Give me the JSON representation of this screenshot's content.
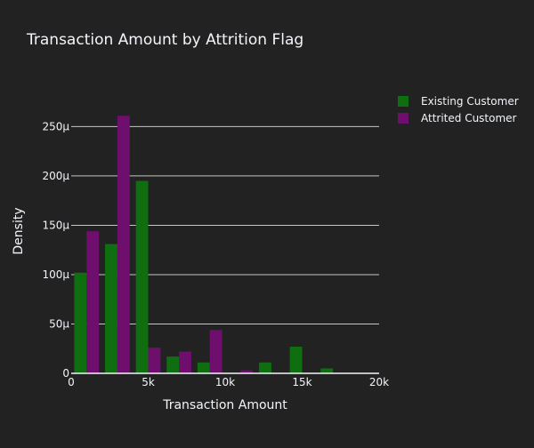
{
  "chart_data": {
    "type": "bar",
    "title": "Transaction Amount by Attrition Flag",
    "xlabel": "Transaction Amount",
    "ylabel": "Density",
    "xlim": [
      0,
      20000
    ],
    "ylim": [
      0,
      0.00029
    ],
    "bin_width": 2000,
    "x_ticks": [
      {
        "value": 0,
        "label": "0"
      },
      {
        "value": 5000,
        "label": "5k"
      },
      {
        "value": 10000,
        "label": "10k"
      },
      {
        "value": 15000,
        "label": "15k"
      },
      {
        "value": 20000,
        "label": "20k"
      }
    ],
    "y_ticks": [
      {
        "value": 0,
        "label": "0"
      },
      {
        "value": 5e-05,
        "label": "50μ"
      },
      {
        "value": 0.0001,
        "label": "100μ"
      },
      {
        "value": 0.00015,
        "label": "150μ"
      },
      {
        "value": 0.0002,
        "label": "200μ"
      },
      {
        "value": 0.00025,
        "label": "250μ"
      }
    ],
    "grid": true,
    "legend_position": "top-right",
    "series": [
      {
        "name": "Existing Customer",
        "color": "#0f6e0f",
        "bins": [
          {
            "x0": 0,
            "value": 0.000102
          },
          {
            "x0": 2000,
            "value": 0.000131
          },
          {
            "x0": 4000,
            "value": 0.000195
          },
          {
            "x0": 6000,
            "value": 1.7e-05
          },
          {
            "x0": 8000,
            "value": 1.1e-05
          },
          {
            "x0": 10000,
            "value": 0.0
          },
          {
            "x0": 12000,
            "value": 1.1e-05
          },
          {
            "x0": 14000,
            "value": 2.7e-05
          },
          {
            "x0": 16000,
            "value": 5e-06
          },
          {
            "x0": 18000,
            "value": 0.0
          }
        ]
      },
      {
        "name": "Attrited Customer",
        "color": "#6e0f6e",
        "bins": [
          {
            "x0": 0,
            "value": 0.000144
          },
          {
            "x0": 2000,
            "value": 0.000261
          },
          {
            "x0": 4000,
            "value": 2.6e-05
          },
          {
            "x0": 6000,
            "value": 2.2e-05
          },
          {
            "x0": 8000,
            "value": 4.4e-05
          },
          {
            "x0": 10000,
            "value": 3e-06
          },
          {
            "x0": 12000,
            "value": 0.0
          },
          {
            "x0": 14000,
            "value": 0.0
          },
          {
            "x0": 16000,
            "value": 0.0
          },
          {
            "x0": 18000,
            "value": 0.0
          }
        ]
      }
    ]
  }
}
